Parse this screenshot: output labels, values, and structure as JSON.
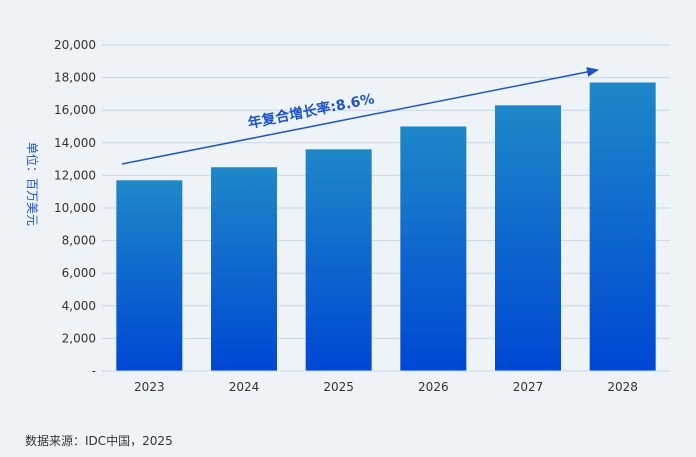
{
  "chart_data": {
    "type": "bar",
    "categories": [
      "2023",
      "2024",
      "2025",
      "2026",
      "2027",
      "2028"
    ],
    "values": [
      11700,
      12500,
      13600,
      15000,
      16300,
      17700
    ],
    "ylim": [
      0,
      20000
    ],
    "yticks": [
      0,
      2000,
      4000,
      6000,
      8000,
      10000,
      12000,
      14000,
      16000,
      18000,
      20000
    ],
    "ytick_labels": [
      "-",
      "2,000",
      "4,000",
      "6,000",
      "8,000",
      "10,000",
      "12,000",
      "14,000",
      "16,000",
      "18,000",
      "20,000"
    ],
    "ylabel": "单位：百万美元",
    "xlabel": "",
    "grid": true,
    "annotation": "年复合增长率:8.6%",
    "colors": {
      "bar_top": "#1e88c8",
      "bar_bottom": "#0047d4",
      "arrow": "#1d55c9",
      "grid": "#c9d8e8"
    }
  },
  "source": "数据来源：IDC中国，2025"
}
